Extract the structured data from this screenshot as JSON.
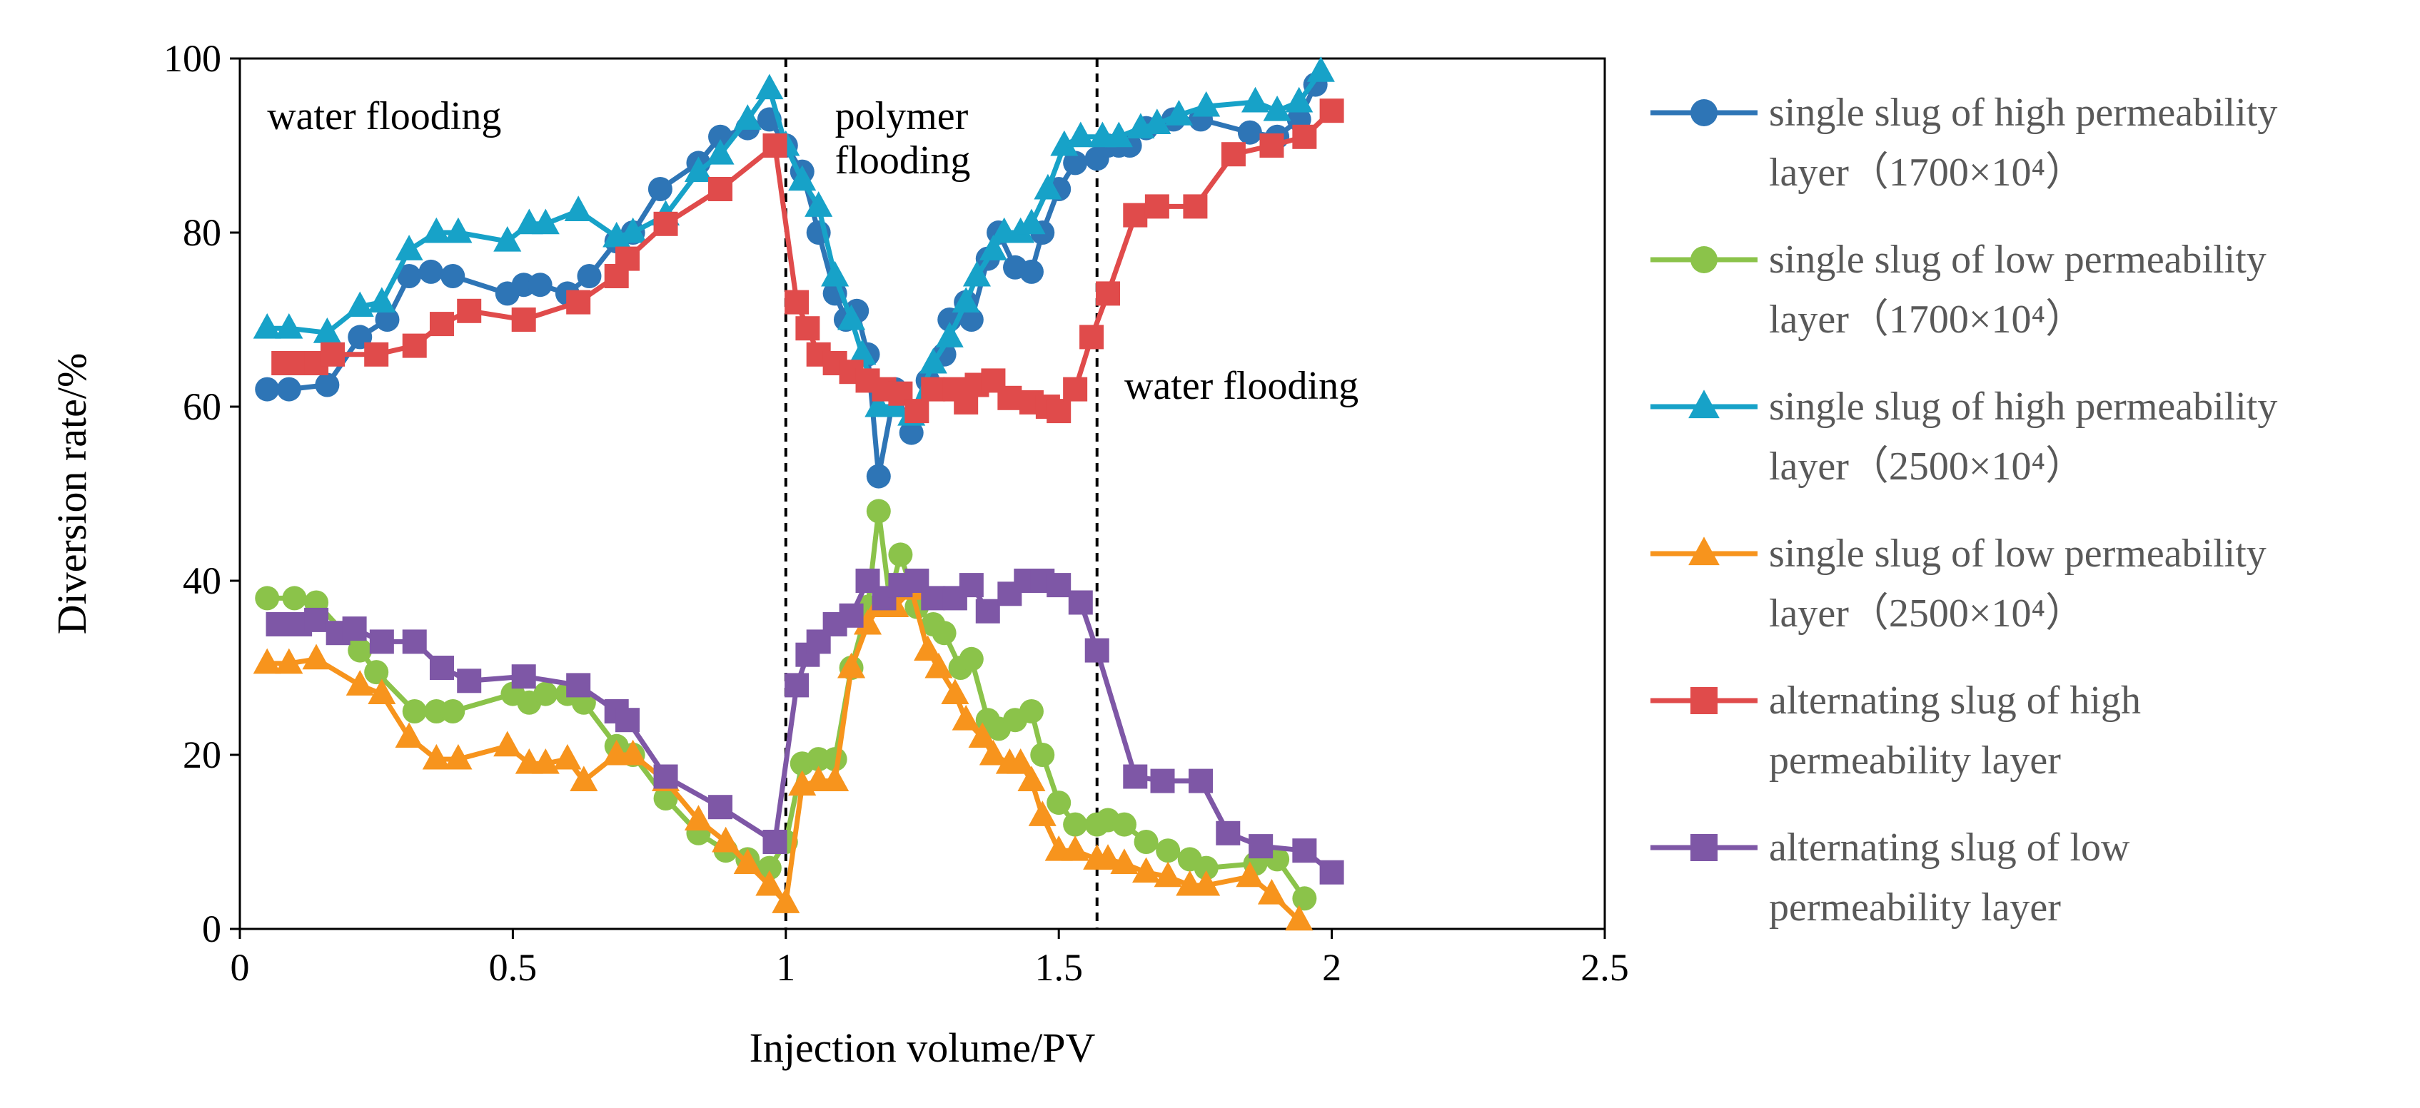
{
  "chart_data": {
    "type": "line",
    "title": "",
    "xlabel": "Injection volume/PV",
    "ylabel": "Diversion rate/%",
    "xlim": [
      0,
      2.5
    ],
    "ylim": [
      0,
      100
    ],
    "x_ticks": [
      "0",
      "0.5",
      "1",
      "1.5",
      "2",
      "2.5"
    ],
    "y_ticks": [
      "0",
      "20",
      "40",
      "60",
      "80",
      "100"
    ],
    "grid": false,
    "legend_position": "right",
    "vlines": [
      1.0,
      1.57
    ],
    "annotations": [
      {
        "lines": [
          "water flooding"
        ],
        "x": 0.05,
        "y": 96
      },
      {
        "lines": [
          "polymer",
          "flooding"
        ],
        "x": 1.09,
        "y": 96
      },
      {
        "lines": [
          "water flooding"
        ],
        "x": 1.62,
        "y": 65
      }
    ],
    "series": [
      {
        "name": "single slug of high permeability layer（1700×10⁴）",
        "legend_lines": [
          "single slug of high permeability",
          "layer（1700×10⁴）"
        ],
        "color": "#2E75B6",
        "marker": "circle",
        "x": [
          0.05,
          0.09,
          0.16,
          0.22,
          0.27,
          0.31,
          0.35,
          0.39,
          0.49,
          0.52,
          0.55,
          0.6,
          0.64,
          0.69,
          0.72,
          0.77,
          0.84,
          0.88,
          0.93,
          0.97,
          1.0,
          1.03,
          1.06,
          1.09,
          1.11,
          1.13,
          1.15,
          1.17,
          1.2,
          1.23,
          1.26,
          1.29,
          1.3,
          1.33,
          1.34,
          1.37,
          1.39,
          1.42,
          1.45,
          1.47,
          1.5,
          1.53,
          1.57,
          1.59,
          1.61,
          1.63,
          1.66,
          1.71,
          1.76,
          1.85,
          1.9,
          1.94,
          1.97
        ],
        "y": [
          62,
          62,
          62.5,
          68,
          70,
          75,
          75.5,
          75,
          73,
          74,
          74,
          73,
          75,
          79,
          80,
          85,
          88,
          91,
          92,
          93,
          90,
          87,
          80,
          73,
          70,
          71,
          66,
          52,
          62,
          57,
          63,
          66,
          70,
          72,
          70,
          77,
          80,
          76,
          75.5,
          80,
          85,
          88,
          88.5,
          90,
          90,
          90,
          92,
          93,
          93,
          91.5,
          91,
          93,
          97
        ]
      },
      {
        "name": "single slug of low permeability layer（1700×10⁴）",
        "legend_lines": [
          "single slug of low permeability",
          "layer（1700×10⁴）"
        ],
        "color": "#8BC34A",
        "marker": "circle",
        "x": [
          0.05,
          0.1,
          0.14,
          0.22,
          0.25,
          0.32,
          0.36,
          0.39,
          0.5,
          0.53,
          0.56,
          0.6,
          0.63,
          0.69,
          0.72,
          0.78,
          0.84,
          0.89,
          0.93,
          0.97,
          1.0,
          1.03,
          1.06,
          1.09,
          1.12,
          1.15,
          1.17,
          1.19,
          1.21,
          1.24,
          1.27,
          1.29,
          1.32,
          1.34,
          1.37,
          1.39,
          1.42,
          1.45,
          1.47,
          1.5,
          1.53,
          1.57,
          1.59,
          1.62,
          1.66,
          1.7,
          1.74,
          1.77,
          1.86,
          1.9,
          1.95
        ],
        "y": [
          38,
          38,
          37.5,
          32,
          29.5,
          25,
          25,
          25,
          27,
          26,
          27,
          27,
          26,
          21,
          20,
          15,
          11,
          9,
          8,
          7,
          10,
          19,
          19.5,
          19.5,
          30,
          37,
          48,
          38,
          43,
          37,
          35,
          34,
          30,
          31,
          24,
          23,
          24,
          25,
          20,
          14.5,
          12,
          12,
          12.5,
          12,
          10,
          9,
          8,
          7,
          7.5,
          8,
          3.5
        ]
      },
      {
        "name": "single slug of high permeability layer（2500×10⁴）",
        "legend_lines": [
          "single slug of high permeability",
          "layer（2500×10⁴）"
        ],
        "color": "#17A2C8",
        "marker": "triangle",
        "x": [
          0.05,
          0.09,
          0.16,
          0.22,
          0.26,
          0.31,
          0.36,
          0.4,
          0.49,
          0.53,
          0.56,
          0.62,
          0.69,
          0.72,
          0.78,
          0.84,
          0.88,
          0.93,
          0.97,
          1.0,
          1.03,
          1.06,
          1.09,
          1.12,
          1.14,
          1.17,
          1.2,
          1.23,
          1.27,
          1.3,
          1.33,
          1.35,
          1.38,
          1.4,
          1.43,
          1.45,
          1.48,
          1.51,
          1.54,
          1.58,
          1.61,
          1.65,
          1.68,
          1.72,
          1.77,
          1.86,
          1.9,
          1.94,
          1.98
        ],
        "y": [
          69,
          69,
          68.5,
          71.5,
          72,
          78,
          80,
          80,
          79,
          81,
          81,
          82.5,
          79.5,
          80,
          82,
          87,
          89,
          93,
          96.5,
          90,
          86,
          83,
          75,
          70,
          66,
          60,
          60,
          59,
          65,
          68,
          72,
          75,
          78,
          80,
          80,
          81,
          85,
          90,
          91,
          91,
          91,
          92,
          92.5,
          93.5,
          94.5,
          95,
          94,
          95,
          98.5
        ]
      },
      {
        "name": "single slug of low permeability layer（2500×10⁴）",
        "legend_lines": [
          "single slug of low permeability",
          "layer（2500×10⁴）"
        ],
        "color": "#F7941D",
        "marker": "triangle",
        "x": [
          0.05,
          0.09,
          0.14,
          0.22,
          0.26,
          0.31,
          0.36,
          0.4,
          0.49,
          0.53,
          0.56,
          0.6,
          0.63,
          0.69,
          0.72,
          0.78,
          0.84,
          0.89,
          0.93,
          0.97,
          1.0,
          1.03,
          1.06,
          1.09,
          1.12,
          1.15,
          1.17,
          1.2,
          1.23,
          1.26,
          1.28,
          1.31,
          1.33,
          1.36,
          1.38,
          1.41,
          1.43,
          1.45,
          1.47,
          1.5,
          1.53,
          1.57,
          1.59,
          1.62,
          1.66,
          1.7,
          1.74,
          1.77,
          1.85,
          1.89,
          1.94
        ],
        "y": [
          30.5,
          30.5,
          31,
          28,
          27,
          22,
          19.5,
          19.5,
          21,
          19,
          19,
          19.5,
          17,
          20,
          20,
          17,
          12.5,
          10,
          7.5,
          5,
          3,
          16.5,
          17,
          17,
          30,
          35,
          37,
          37,
          39,
          32,
          30,
          27,
          24,
          22,
          20,
          19,
          19,
          17,
          13,
          9,
          9,
          8,
          8,
          7.5,
          6.5,
          6,
          5,
          5,
          6,
          4,
          1
        ]
      },
      {
        "name": "alternating slug of high permeability layer",
        "legend_lines": [
          "alternating slug of high",
          "permeability layer"
        ],
        "color": "#E04B4B",
        "marker": "square",
        "x": [
          0.08,
          0.11,
          0.14,
          0.17,
          0.25,
          0.32,
          0.37,
          0.42,
          0.52,
          0.62,
          0.69,
          0.71,
          0.78,
          0.88,
          0.98,
          1.02,
          1.04,
          1.06,
          1.09,
          1.12,
          1.15,
          1.18,
          1.21,
          1.24,
          1.27,
          1.31,
          1.33,
          1.35,
          1.38,
          1.41,
          1.45,
          1.48,
          1.5,
          1.53,
          1.56,
          1.59,
          1.64,
          1.68,
          1.75,
          1.82,
          1.89,
          1.95,
          2.0
        ],
        "y": [
          65,
          65,
          65,
          66,
          66,
          67,
          69.5,
          71,
          70,
          72,
          75,
          77,
          81,
          85,
          90,
          72,
          69,
          66,
          65,
          64,
          63,
          62,
          61.5,
          59.5,
          62,
          62,
          60.5,
          62.5,
          63,
          61,
          60.5,
          60,
          59.5,
          62,
          68,
          73,
          82,
          83,
          83,
          89,
          90,
          91,
          94
        ]
      },
      {
        "name": "alternating slug of low permeability layer",
        "legend_lines": [
          "alternating slug of low",
          "permeability layer"
        ],
        "color": "#7E57A6",
        "marker": "square",
        "x": [
          0.07,
          0.11,
          0.14,
          0.18,
          0.21,
          0.26,
          0.32,
          0.37,
          0.42,
          0.52,
          0.62,
          0.69,
          0.71,
          0.78,
          0.88,
          0.98,
          1.02,
          1.04,
          1.06,
          1.09,
          1.12,
          1.15,
          1.18,
          1.21,
          1.24,
          1.27,
          1.31,
          1.34,
          1.37,
          1.41,
          1.44,
          1.47,
          1.5,
          1.54,
          1.57,
          1.64,
          1.69,
          1.76,
          1.81,
          1.87,
          1.95,
          2.0
        ],
        "y": [
          35,
          35,
          35.5,
          34,
          34.5,
          33,
          33,
          30,
          28.5,
          29,
          28,
          25,
          24,
          17.5,
          14,
          10,
          28,
          31.5,
          33,
          35,
          36,
          40,
          38,
          39.5,
          40,
          38,
          38,
          39.5,
          36.5,
          38.5,
          40,
          40,
          39.5,
          37.5,
          32,
          17.5,
          17,
          17,
          11,
          9.5,
          9,
          6.5
        ]
      }
    ]
  }
}
